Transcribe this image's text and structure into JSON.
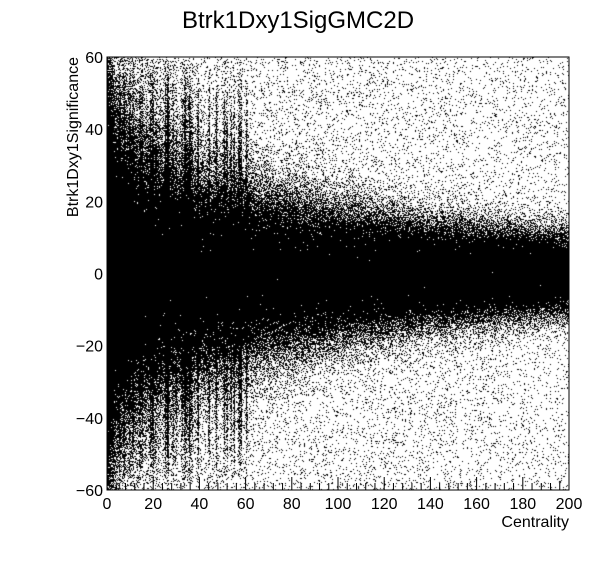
{
  "chart_data": {
    "type": "scatter",
    "title": "Btrk1Dxy1SigGMC2D",
    "xlabel": "Centrality",
    "ylabel": "Btrk1Dxy1Significance",
    "xlim": [
      0,
      200
    ],
    "ylim": [
      -60,
      60
    ],
    "x_ticks": [
      0,
      20,
      40,
      60,
      80,
      100,
      120,
      140,
      160,
      180,
      200
    ],
    "y_ticks": [
      -60,
      -40,
      -20,
      0,
      20,
      40,
      60
    ],
    "x_tick_labels": [
      "0",
      "20",
      "40",
      "60",
      "80",
      "100",
      "120",
      "140",
      "160",
      "180",
      "200"
    ],
    "y_tick_labels": [
      "−60",
      "−40",
      "−20",
      "0",
      "20",
      "40",
      "60"
    ],
    "grid": false,
    "legend": "none",
    "marker_color": "#000000",
    "density_description_core": {
      "x_range": [
        0,
        120
      ],
      "y_range": [
        -20,
        20
      ]
    },
    "density_bands": [
      {
        "x_max": 20,
        "y_core": 20,
        "density": 1.0
      },
      {
        "x_max": 60,
        "y_core": 20,
        "density": 0.9
      },
      {
        "x_max": 100,
        "y_core": 15,
        "density": 0.6
      },
      {
        "x_max": 140,
        "y_core": 10,
        "density": 0.3
      },
      {
        "x_max": 180,
        "y_core": 5,
        "density": 0.08
      },
      {
        "x_max": 200,
        "y_core": 3,
        "density": 0.03
      }
    ]
  }
}
